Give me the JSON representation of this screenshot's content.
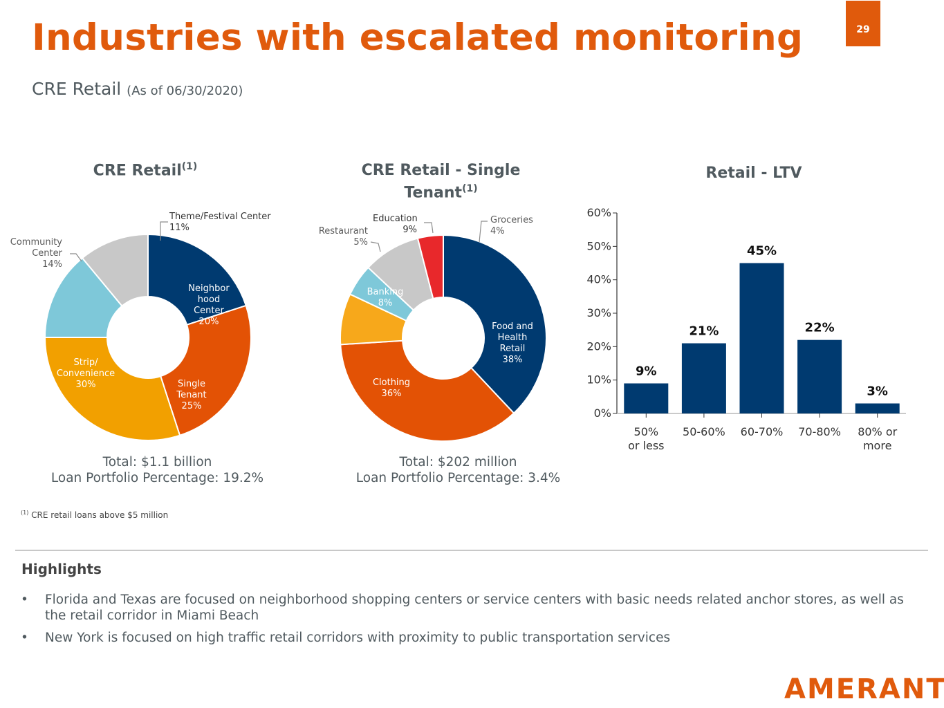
{
  "header": {
    "title": "Industries with escalated monitoring",
    "page_number": "29",
    "subtitle_main": "CRE Retail",
    "subtitle_date": "(As of 06/30/2020)"
  },
  "chart_data": [
    {
      "type": "pie",
      "title": "CRE Retail",
      "title_superscript": "(1)",
      "slices": [
        {
          "label": "Neighbor hood Center",
          "value": 20,
          "value_label": "20%",
          "color": "#003a70"
        },
        {
          "label": "Single Tenant",
          "value": 25,
          "value_label": "25%",
          "color": "#e35205"
        },
        {
          "label": "Strip/ Convenience",
          "value": 30,
          "value_label": "30%",
          "color": "#f2a000"
        },
        {
          "label": "Community Center",
          "value": 14,
          "value_label": "14%",
          "color": "#7ec8d9"
        },
        {
          "label": "Theme/Festival Center",
          "value": 11,
          "value_label": "11%",
          "color": "#c8c8c8"
        }
      ],
      "total": "Total: $1.1 billion",
      "portfolio": "Loan Portfolio Percentage: 19.2%"
    },
    {
      "type": "pie",
      "title": "CRE Retail - Single Tenant",
      "title_superscript": "(1)",
      "slices": [
        {
          "label": "Food and Health Retail",
          "value": 38,
          "value_label": "38%",
          "color": "#003a70"
        },
        {
          "label": "Clothing",
          "value": 36,
          "value_label": "36%",
          "color": "#e35205"
        },
        {
          "label": "Banking",
          "value": 8,
          "value_label": "8%",
          "color": "#f7a81b"
        },
        {
          "label": "Restaurant",
          "value": 5,
          "value_label": "5%",
          "color": "#7ec8d9"
        },
        {
          "label": "Education",
          "value": 9,
          "value_label": "9%",
          "color": "#c8c8c8"
        },
        {
          "label": "Groceries",
          "value": 4,
          "value_label": "4%",
          "color": "#e8282b"
        }
      ],
      "total": "Total: $202 million",
      "portfolio": "Loan Portfolio Percentage: 3.4%"
    },
    {
      "type": "bar",
      "title": "Retail - LTV",
      "categories": [
        "50% or less",
        "50-60%",
        "60-70%",
        "70-80%",
        "80% or more"
      ],
      "category_lines": [
        [
          "50%",
          "or less"
        ],
        [
          "50-60%"
        ],
        [
          "60-70%"
        ],
        [
          "70-80%"
        ],
        [
          "80% or",
          "more"
        ]
      ],
      "values": [
        9,
        21,
        45,
        22,
        3
      ],
      "value_labels": [
        "9%",
        "21%",
        "45%",
        "22%",
        "3%"
      ],
      "ylim": [
        0,
        60
      ],
      "yticks": [
        "0%",
        "10%",
        "20%",
        "30%",
        "40%",
        "50%",
        "60%"
      ],
      "bar_color": "#003a70"
    }
  ],
  "footnote": {
    "marker": "(1)",
    "text": "CRE retail loans above $5 million"
  },
  "highlights": {
    "title": "Highlights",
    "bullet": "•",
    "items": [
      "Florida and Texas are focused on neighborhood shopping centers or service centers with basic needs related anchor stores, as well as the retail corridor in Miami Beach",
      "New York is focused on high traffic retail corridors with proximity to public transportation services"
    ]
  },
  "logo": "AMERANT"
}
